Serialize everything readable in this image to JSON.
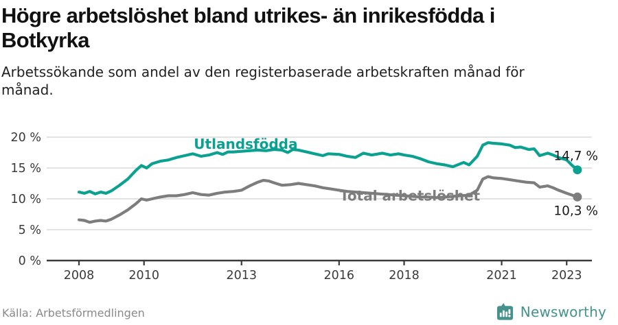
{
  "page": {
    "title": "Högre arbetslöshet bland utrikes- än inrikesfödda i\nBotkyrka",
    "subtitle": "Arbetssökande som andel av den registerbaserade arbetskraften månad för\nmånad."
  },
  "footer": {
    "source": "Källa: Arbetsförmedlingen",
    "brand_name": "Newsworthy",
    "brand_icon": "speech-bubble-bar-chart-icon"
  },
  "colors": {
    "accent_teal": "#0ba190",
    "series_gray": "#7d7d7d",
    "grid": "#d9d9d9",
    "axis": "#3a3a3a",
    "tick_label": "#3a3a3a",
    "value_label": "#1a1a1a",
    "brand_teal": "#45928c"
  },
  "chart_data": {
    "type": "line",
    "x_unit": "year (monthly data)",
    "x_ticks": [
      2008,
      2010,
      2013,
      2016,
      2018,
      2021,
      2023
    ],
    "x_tick_labels": [
      "2008",
      "2010",
      "2013",
      "2016",
      "2018",
      "2021",
      "2023"
    ],
    "y_ticks": [
      0,
      5,
      10,
      15,
      20
    ],
    "y_tick_labels": [
      "0 %",
      "5 %",
      "10 %",
      "15 %",
      "20 %"
    ],
    "xlim": [
      2007.0,
      2023.8
    ],
    "ylim": [
      0,
      22.8
    ],
    "grid": "horizontal",
    "legend_position": "inline-labels",
    "series": [
      {
        "name": "Utlandsfödda",
        "color": "#0ba190",
        "end_value": 14.7,
        "end_label": "14,7 %",
        "end_label_side": "above",
        "label_at": [
          2013.13,
          18.1
        ],
        "points": [
          [
            2008,
            11.1
          ],
          [
            2008.17,
            10.9
          ],
          [
            2008.33,
            11.2
          ],
          [
            2008.5,
            10.8
          ],
          [
            2008.67,
            11.1
          ],
          [
            2008.83,
            10.9
          ],
          [
            2009,
            11.3
          ],
          [
            2009.25,
            12.2
          ],
          [
            2009.5,
            13.2
          ],
          [
            2009.75,
            14.6
          ],
          [
            2009.92,
            15.4
          ],
          [
            2010.08,
            15.0
          ],
          [
            2010.25,
            15.7
          ],
          [
            2010.5,
            16.1
          ],
          [
            2010.75,
            16.3
          ],
          [
            2011,
            16.7
          ],
          [
            2011.25,
            17.0
          ],
          [
            2011.5,
            17.3
          ],
          [
            2011.75,
            16.9
          ],
          [
            2012,
            17.1
          ],
          [
            2012.25,
            17.5
          ],
          [
            2012.42,
            17.2
          ],
          [
            2012.58,
            17.6
          ],
          [
            2012.75,
            17.6
          ],
          [
            2013,
            17.7
          ],
          [
            2013.25,
            17.8
          ],
          [
            2013.5,
            17.9
          ],
          [
            2013.75,
            17.8
          ],
          [
            2014,
            18.0
          ],
          [
            2014.25,
            17.9
          ],
          [
            2014.42,
            17.5
          ],
          [
            2014.58,
            18.0
          ],
          [
            2014.75,
            17.9
          ],
          [
            2015,
            17.6
          ],
          [
            2015.25,
            17.3
          ],
          [
            2015.5,
            17.0
          ],
          [
            2015.67,
            17.3
          ],
          [
            2016,
            17.2
          ],
          [
            2016.25,
            16.9
          ],
          [
            2016.5,
            16.7
          ],
          [
            2016.75,
            17.4
          ],
          [
            2017,
            17.1
          ],
          [
            2017.33,
            17.4
          ],
          [
            2017.58,
            17.1
          ],
          [
            2017.83,
            17.3
          ],
          [
            2018,
            17.1
          ],
          [
            2018.25,
            16.9
          ],
          [
            2018.5,
            16.5
          ],
          [
            2018.75,
            16.0
          ],
          [
            2019,
            15.7
          ],
          [
            2019.25,
            15.5
          ],
          [
            2019.5,
            15.2
          ],
          [
            2019.83,
            15.9
          ],
          [
            2020,
            15.5
          ],
          [
            2020.25,
            16.9
          ],
          [
            2020.42,
            18.7
          ],
          [
            2020.58,
            19.1
          ],
          [
            2020.75,
            19.0
          ],
          [
            2021,
            18.9
          ],
          [
            2021.25,
            18.7
          ],
          [
            2021.42,
            18.3
          ],
          [
            2021.58,
            18.4
          ],
          [
            2021.83,
            18.0
          ],
          [
            2022,
            18.1
          ],
          [
            2022.17,
            17.0
          ],
          [
            2022.42,
            17.4
          ],
          [
            2022.58,
            17.1
          ],
          [
            2022.75,
            16.7
          ],
          [
            2023,
            16.3
          ],
          [
            2023.17,
            15.4
          ],
          [
            2023.33,
            14.7
          ]
        ]
      },
      {
        "name": "Total arbetslöshet",
        "color": "#7d7d7d",
        "end_value": 10.3,
        "end_label": "10,3 %",
        "end_label_side": "below",
        "label_at": [
          2018.18,
          9.75
        ],
        "points": [
          [
            2008,
            6.6
          ],
          [
            2008.17,
            6.5
          ],
          [
            2008.33,
            6.2
          ],
          [
            2008.5,
            6.4
          ],
          [
            2008.67,
            6.5
          ],
          [
            2008.83,
            6.4
          ],
          [
            2009,
            6.7
          ],
          [
            2009.25,
            7.4
          ],
          [
            2009.5,
            8.2
          ],
          [
            2009.75,
            9.2
          ],
          [
            2009.92,
            10.0
          ],
          [
            2010.08,
            9.8
          ],
          [
            2010.25,
            10.0
          ],
          [
            2010.5,
            10.3
          ],
          [
            2010.75,
            10.5
          ],
          [
            2011,
            10.5
          ],
          [
            2011.25,
            10.7
          ],
          [
            2011.5,
            11.0
          ],
          [
            2011.75,
            10.7
          ],
          [
            2012,
            10.6
          ],
          [
            2012.25,
            10.9
          ],
          [
            2012.5,
            11.1
          ],
          [
            2012.75,
            11.2
          ],
          [
            2013,
            11.4
          ],
          [
            2013.25,
            12.1
          ],
          [
            2013.5,
            12.7
          ],
          [
            2013.67,
            13.0
          ],
          [
            2013.83,
            12.9
          ],
          [
            2014,
            12.6
          ],
          [
            2014.25,
            12.2
          ],
          [
            2014.5,
            12.3
          ],
          [
            2014.75,
            12.5
          ],
          [
            2015,
            12.3
          ],
          [
            2015.25,
            12.1
          ],
          [
            2015.5,
            11.8
          ],
          [
            2015.75,
            11.6
          ],
          [
            2016,
            11.4
          ],
          [
            2016.25,
            11.2
          ],
          [
            2016.5,
            11.1
          ],
          [
            2016.75,
            11.0
          ],
          [
            2017,
            10.9
          ],
          [
            2017.25,
            10.8
          ],
          [
            2017.5,
            10.7
          ],
          [
            2017.75,
            10.6
          ],
          [
            2018,
            10.5
          ],
          [
            2018.25,
            10.4
          ],
          [
            2018.5,
            10.3
          ],
          [
            2018.75,
            10.3
          ],
          [
            2019,
            10.2
          ],
          [
            2019.25,
            10.3
          ],
          [
            2019.5,
            10.4
          ],
          [
            2019.75,
            10.5
          ],
          [
            2020,
            10.6
          ],
          [
            2020.25,
            11.4
          ],
          [
            2020.42,
            13.2
          ],
          [
            2020.58,
            13.6
          ],
          [
            2020.75,
            13.4
          ],
          [
            2021,
            13.3
          ],
          [
            2021.25,
            13.1
          ],
          [
            2021.5,
            12.9
          ],
          [
            2021.75,
            12.7
          ],
          [
            2022,
            12.6
          ],
          [
            2022.17,
            11.9
          ],
          [
            2022.42,
            12.1
          ],
          [
            2022.58,
            11.8
          ],
          [
            2022.75,
            11.4
          ],
          [
            2023,
            10.9
          ],
          [
            2023.17,
            10.6
          ],
          [
            2023.33,
            10.3
          ]
        ]
      }
    ]
  }
}
